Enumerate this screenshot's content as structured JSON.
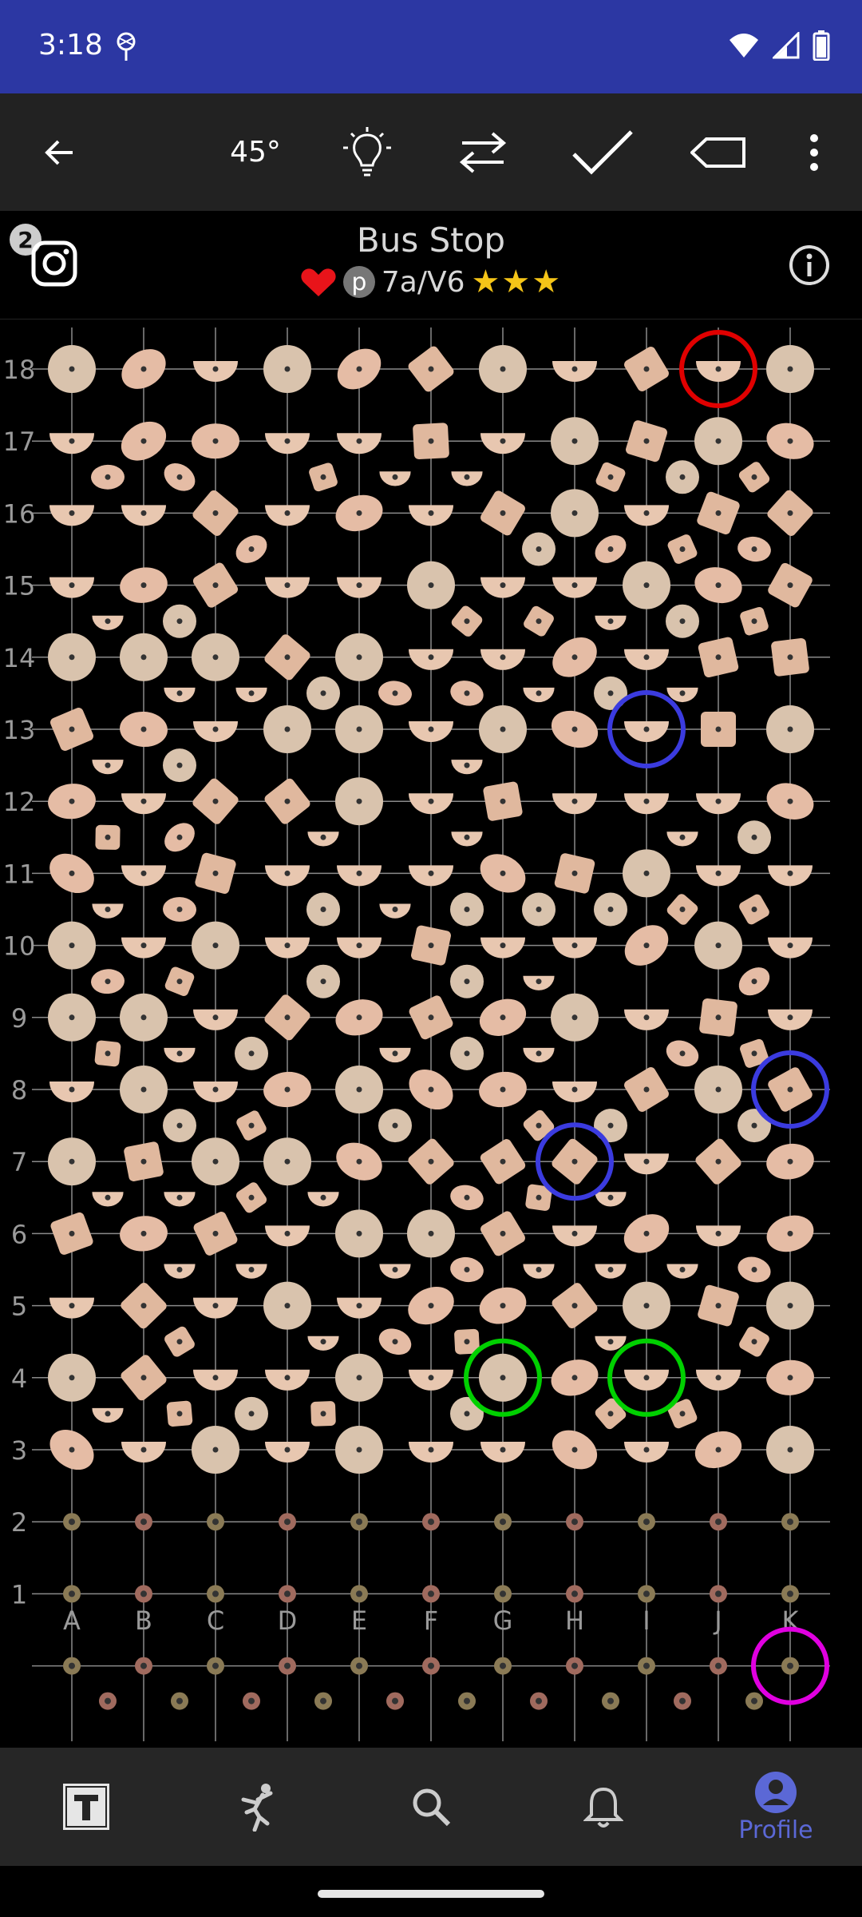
{
  "status": {
    "time": "3:18"
  },
  "toolbar": {
    "angle": "45°"
  },
  "problem": {
    "name": "Bus Stop",
    "badge_count": "2",
    "p_label": "p",
    "grade": "7a/V6",
    "stars": "★★★"
  },
  "board": {
    "columns": [
      "A",
      "B",
      "C",
      "D",
      "E",
      "F",
      "G",
      "H",
      "I",
      "J",
      "K"
    ],
    "rows": [
      "18",
      "17",
      "16",
      "15",
      "14",
      "13",
      "12",
      "11",
      "10",
      "9",
      "8",
      "7",
      "6",
      "5",
      "4",
      "3",
      "2",
      "1"
    ],
    "selected_holds": [
      {
        "col": "J",
        "row": 18,
        "role": "finish",
        "color": "#e00000"
      },
      {
        "col": "I",
        "row": 13,
        "role": "hand",
        "color": "#3b3bdf"
      },
      {
        "col": "K",
        "row": 8,
        "role": "hand",
        "color": "#3b3bdf"
      },
      {
        "col": "H",
        "row": 7,
        "role": "hand",
        "color": "#3b3bdf"
      },
      {
        "col": "G",
        "row": 4,
        "role": "start",
        "color": "#00d000"
      },
      {
        "col": "I",
        "row": 4,
        "role": "start",
        "color": "#00d000"
      },
      {
        "col": "K",
        "row": 0,
        "role": "foot",
        "color": "#e000e0"
      }
    ]
  },
  "nav": {
    "items": [
      {
        "name": "logbook",
        "icon": "logo-icon",
        "label": ""
      },
      {
        "name": "climb",
        "icon": "climber-icon",
        "label": ""
      },
      {
        "name": "search",
        "icon": "search-icon",
        "label": ""
      },
      {
        "name": "notifications",
        "icon": "bell-icon",
        "label": ""
      },
      {
        "name": "profile",
        "icon": "profile-icon",
        "label": "Profile"
      }
    ]
  },
  "colors": {
    "status_bar": "#2c37a3",
    "accent": "#5b68d6",
    "hold": "#e8c7b0",
    "finish": "#e00000",
    "hand": "#3b3bdf",
    "start": "#00d000",
    "foot": "#e000e0"
  }
}
